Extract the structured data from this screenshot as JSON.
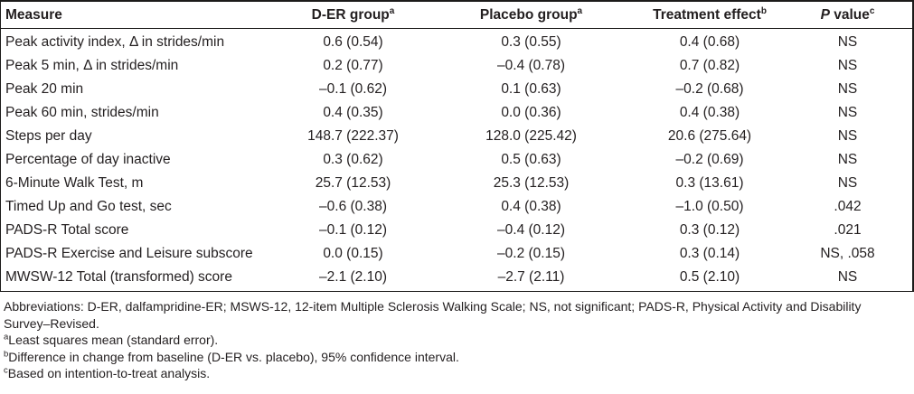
{
  "table": {
    "header": {
      "measure": {
        "label": "Measure",
        "sup": ""
      },
      "der": {
        "label": "D-ER group",
        "sup": "a"
      },
      "placebo": {
        "label": "Placebo group",
        "sup": "a"
      },
      "effect": {
        "label": "Treatment effect",
        "sup": "b"
      },
      "pvalue": {
        "italic": "P",
        "label": " value",
        "sup": "c"
      }
    },
    "rows": [
      {
        "measure": "Peak activity index, Δ in strides/min",
        "der": "0.6 (0.54)",
        "placebo": "0.3 (0.55)",
        "effect": "0.4 (0.68)",
        "p": "NS"
      },
      {
        "measure": "Peak 5 min, Δ in strides/min",
        "der": "0.2 (0.77)",
        "placebo": "–0.4 (0.78)",
        "effect": "0.7 (0.82)",
        "p": "NS"
      },
      {
        "measure": "Peak 20 min",
        "der": "–0.1 (0.62)",
        "placebo": "0.1 (0.63)",
        "effect": "–0.2 (0.68)",
        "p": "NS"
      },
      {
        "measure": "Peak 60 min, strides/min",
        "der": "0.4 (0.35)",
        "placebo": "0.0 (0.36)",
        "effect": "0.4 (0.38)",
        "p": "NS"
      },
      {
        "measure": "Steps per day",
        "der": "148.7 (222.37)",
        "placebo": "128.0 (225.42)",
        "effect": "20.6 (275.64)",
        "p": "NS"
      },
      {
        "measure": "Percentage of day inactive",
        "der": "0.3 (0.62)",
        "placebo": "0.5 (0.63)",
        "effect": "–0.2 (0.69)",
        "p": "NS"
      },
      {
        "measure": "6-Minute Walk Test, m",
        "der": "25.7 (12.53)",
        "placebo": "25.3 (12.53)",
        "effect": "0.3 (13.61)",
        "p": "NS"
      },
      {
        "measure": "Timed Up and Go test, sec",
        "der": "–0.6 (0.38)",
        "placebo": "0.4 (0.38)",
        "effect": "–1.0 (0.50)",
        "p": ".042"
      },
      {
        "measure": "PADS-R Total score",
        "der": "–0.1 (0.12)",
        "placebo": "–0.4 (0.12)",
        "effect": "0.3 (0.12)",
        "p": ".021"
      },
      {
        "measure": "PADS-R Exercise and Leisure subscore",
        "der": "0.0 (0.15)",
        "placebo": "–0.2 (0.15)",
        "effect": "0.3 (0.14)",
        "p": "NS, .058"
      },
      {
        "measure": "MWSW-12 Total (transformed) score",
        "der": "–2.1 (2.10)",
        "placebo": "–2.7 (2.11)",
        "effect": "0.5 (2.10)",
        "p": "NS"
      }
    ]
  },
  "footnotes": [
    {
      "sup": "",
      "text": "Abbreviations: D-ER, dalfampridine-ER; MSWS-12, 12-item Multiple Sclerosis Walking Scale; NS, not significant; PADS-R, Physical Activity and Disability Survey–Revised."
    },
    {
      "sup": "a",
      "text": "Least squares mean (standard error)."
    },
    {
      "sup": "b",
      "text": "Difference in change from baseline (D-ER vs. placebo), 95% confidence interval."
    },
    {
      "sup": "c",
      "text": "Based on intention-to-treat analysis."
    }
  ]
}
